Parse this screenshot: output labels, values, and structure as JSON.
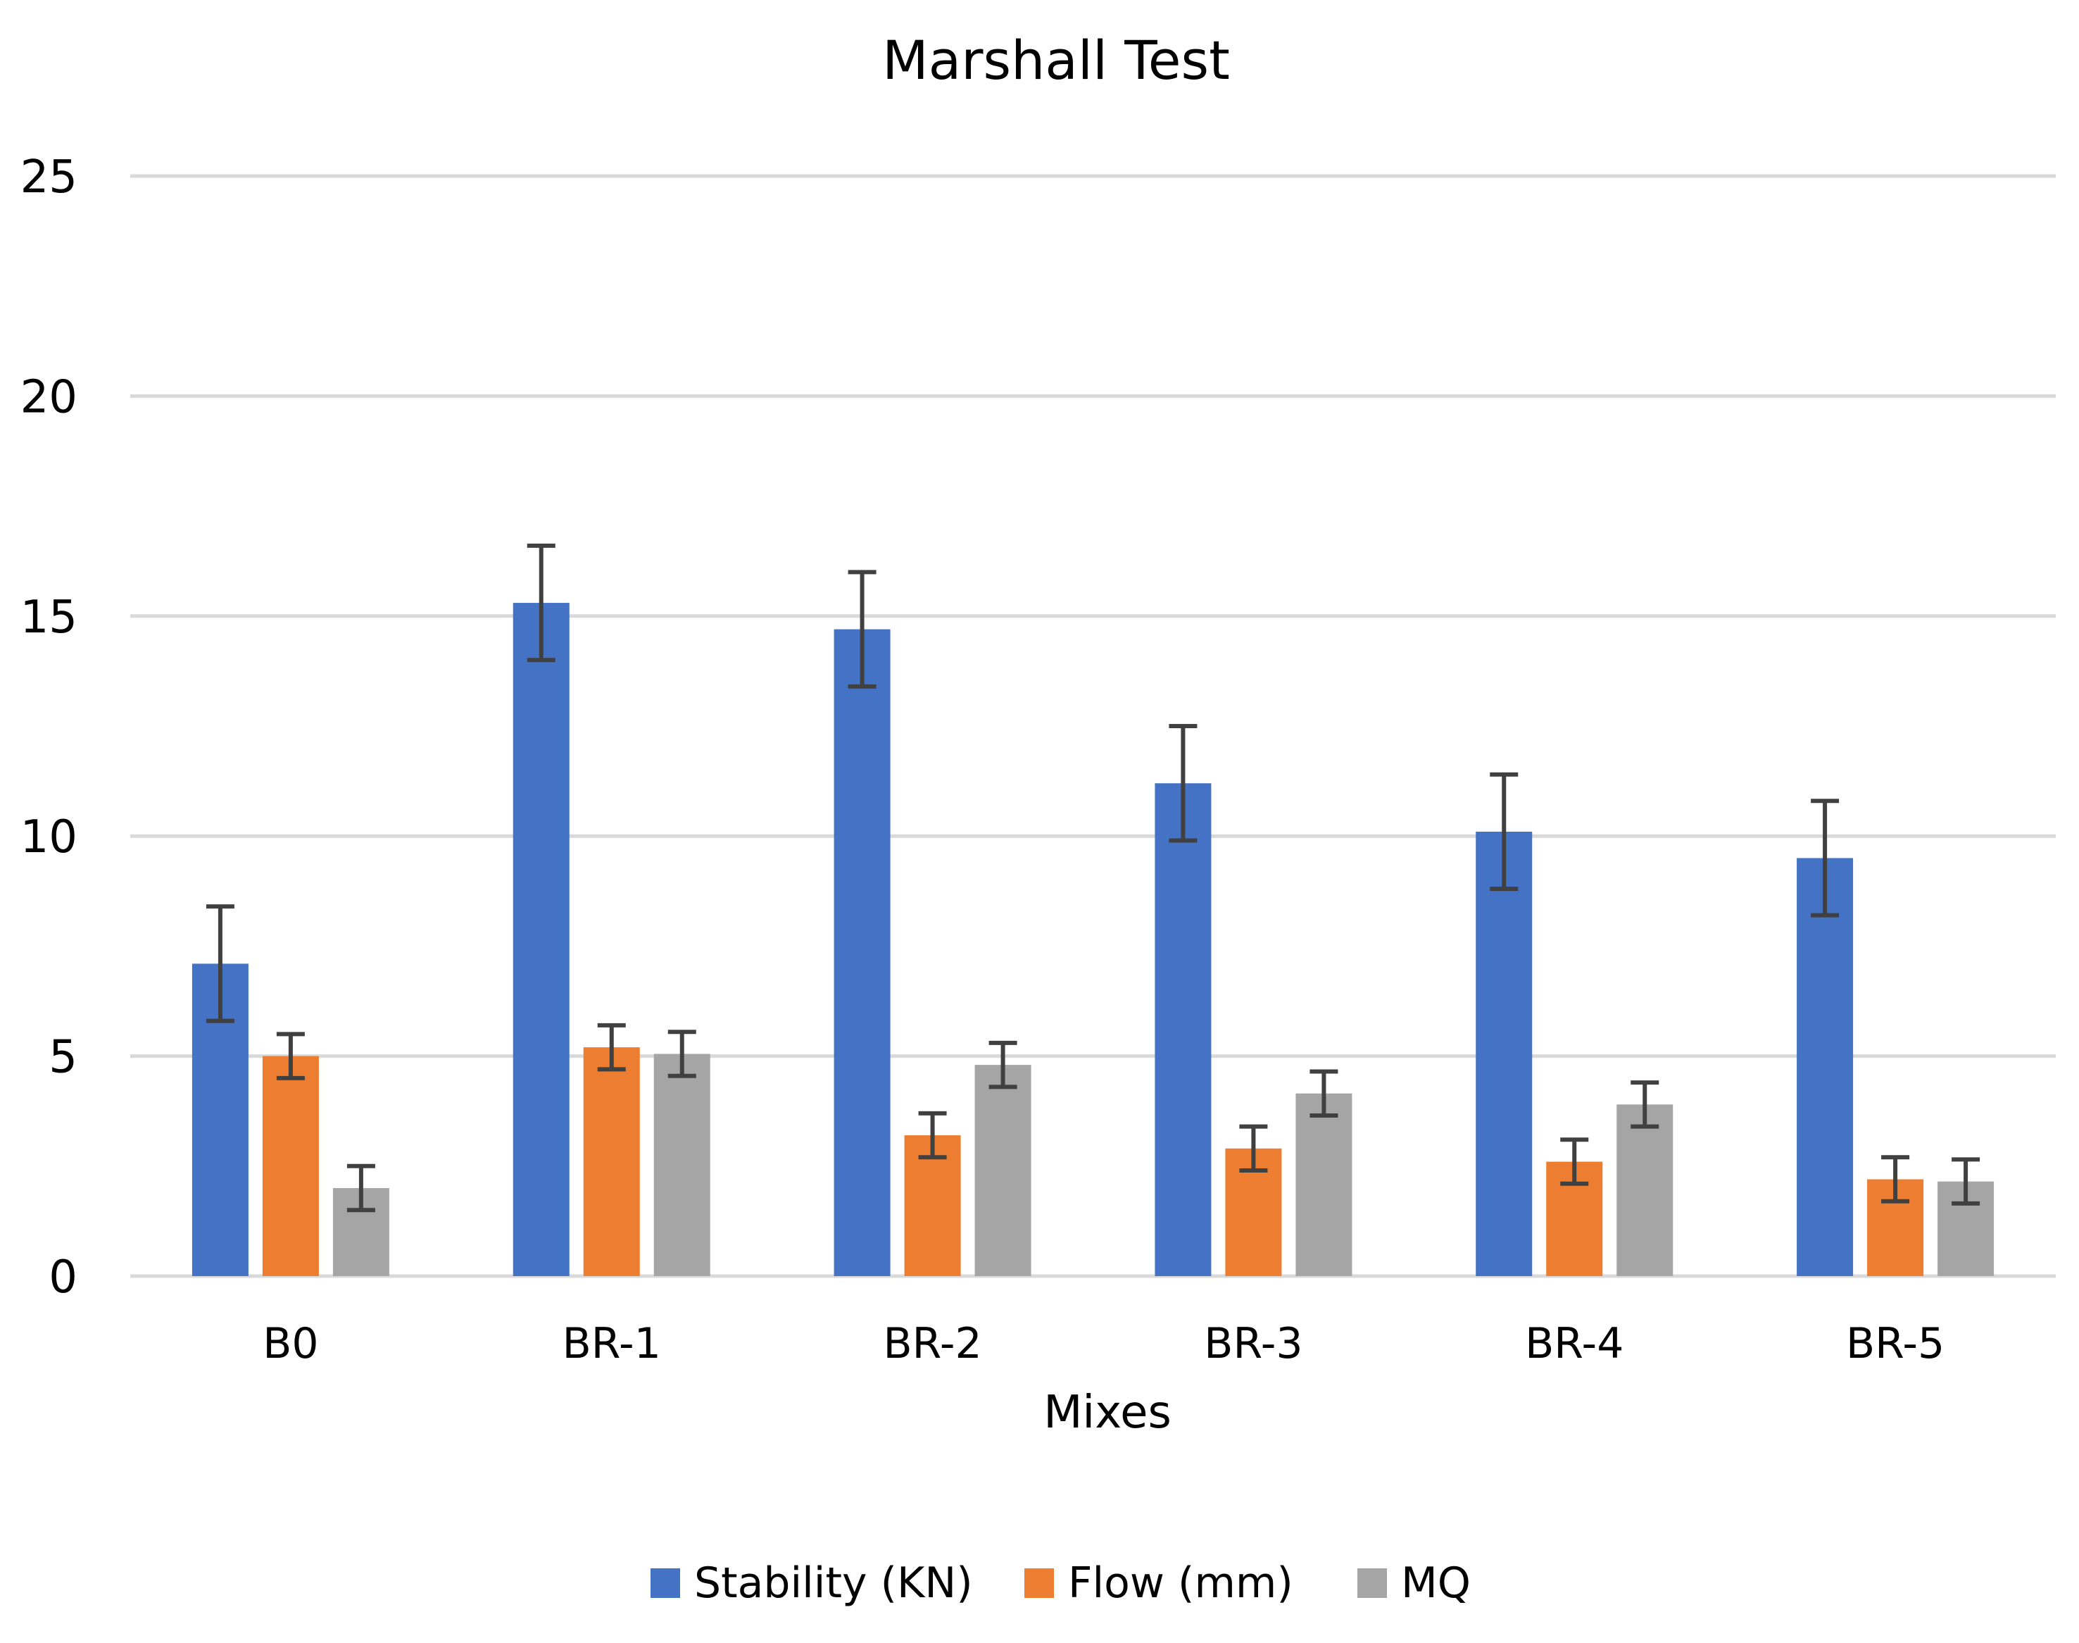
{
  "chart_data": {
    "type": "bar",
    "title": "Marshall Test",
    "xlabel": "Mixes",
    "ylabel": "",
    "ylim": [
      0,
      25
    ],
    "yticks": [
      0,
      5,
      10,
      15,
      20,
      25
    ],
    "grid": true,
    "legend_position": "bottom",
    "categories": [
      "B0",
      "BR-1",
      "BR-2",
      "BR-3",
      "BR-4",
      "BR-5"
    ],
    "series": [
      {
        "name": "Stability (KN)",
        "color": "#4472C4",
        "values": [
          7.1,
          15.3,
          14.7,
          11.2,
          10.1,
          9.5
        ],
        "error": [
          1.3,
          1.3,
          1.3,
          1.3,
          1.3,
          1.3
        ]
      },
      {
        "name": "Flow (mm)",
        "color": "#ED7D31",
        "values": [
          5.0,
          5.2,
          3.2,
          2.9,
          2.6,
          2.2
        ],
        "error": [
          0.5,
          0.5,
          0.5,
          0.5,
          0.5,
          0.5
        ]
      },
      {
        "name": "MQ",
        "color": "#A5A5A5",
        "values": [
          2.0,
          5.05,
          4.8,
          4.15,
          3.9,
          2.15
        ],
        "error": [
          0.5,
          0.5,
          0.5,
          0.5,
          0.5,
          0.5
        ]
      }
    ],
    "colors": {
      "grid": "#D9D9D9",
      "error_bar": "#404040"
    }
  }
}
